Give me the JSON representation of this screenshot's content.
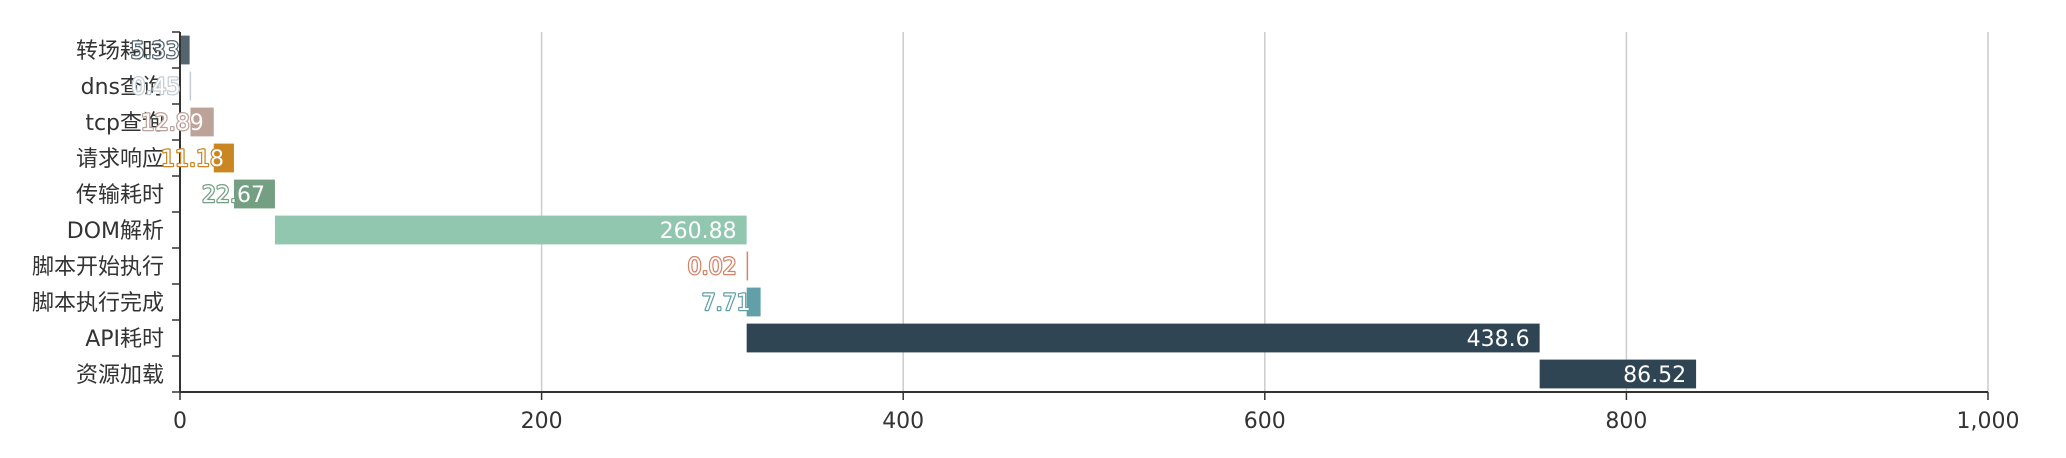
{
  "chart_data": {
    "type": "bar",
    "orientation": "horizontal",
    "stacked_waterfall": true,
    "categories": [
      "转场耗时",
      "dns查询",
      "tcp查询",
      "请求响应",
      "传输耗时",
      "DOM解析",
      "脚本开始执行",
      "脚本执行完成",
      "API耗时",
      "资源加载"
    ],
    "offsets": [
      0,
      5.33,
      5.78,
      18.67,
      29.85,
      52.52,
      313.4,
      313.42,
      313.42,
      752.02
    ],
    "values": [
      5.33,
      0.45,
      12.89,
      11.18,
      22.67,
      260.88,
      0.02,
      7.71,
      438.6,
      86.52
    ],
    "value_labels": [
      "5.33",
      "0.45",
      "12.89",
      "11.18",
      "22.67",
      "260.88",
      "0.02",
      "7.71",
      "438.6",
      "86.52"
    ],
    "colors": [
      "#546570",
      "#c4ccd3",
      "#bda29a",
      "#ca8622",
      "#749f83",
      "#91c7ae",
      "#d48265",
      "#61a0a8",
      "#2f4554",
      "#2f4554"
    ],
    "xlim": [
      0,
      1000
    ],
    "x_ticks": [
      "0",
      "200",
      "400",
      "600",
      "800",
      "1,000"
    ],
    "x_tick_values": [
      0,
      200,
      400,
      600,
      800,
      1000
    ],
    "grid": true,
    "title": "",
    "xlabel": "",
    "ylabel": ""
  }
}
